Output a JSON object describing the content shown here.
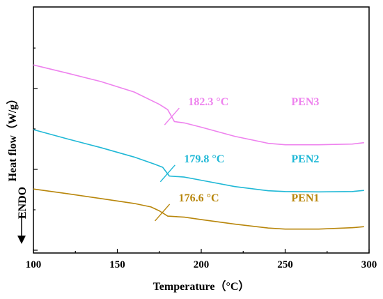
{
  "chart_data": {
    "type": "line",
    "title": "",
    "xlabel": "Temperature（°C）",
    "ylabel": "Heat flow（W/g）",
    "endo_label": "ENDO",
    "xlim": [
      100,
      300
    ],
    "x_ticks": [
      100,
      150,
      200,
      250,
      300
    ],
    "y_ticks_shown": false,
    "grid": false,
    "legend": "none (series labelled inline)",
    "series": [
      {
        "name": "PEN3",
        "color": "#ee82ee",
        "glass_transition_label": "182.3 °C",
        "glass_transition_x": 182.3,
        "points": [
          [
            100,
            40.5
          ],
          [
            120,
            38.2
          ],
          [
            140,
            35.8
          ],
          [
            160,
            32.8
          ],
          [
            175,
            29.3
          ],
          [
            180,
            27.8
          ],
          [
            184,
            24.4
          ],
          [
            190,
            24.0
          ],
          [
            200,
            22.8
          ],
          [
            220,
            20.2
          ],
          [
            240,
            18.2
          ],
          [
            250,
            17.8
          ],
          [
            270,
            17.8
          ],
          [
            290,
            18.0
          ],
          [
            297,
            18.4
          ]
        ]
      },
      {
        "name": "PEN2",
        "color": "#1fb8d6",
        "glass_transition_label": "179.8 °C",
        "glass_transition_x": 179.8,
        "points": [
          [
            100,
            22.1
          ],
          [
            120,
            19.5
          ],
          [
            140,
            17.0
          ],
          [
            160,
            14.3
          ],
          [
            172,
            12.3
          ],
          [
            177,
            11.4
          ],
          [
            181,
            8.9
          ],
          [
            190,
            8.6
          ],
          [
            200,
            7.7
          ],
          [
            220,
            5.9
          ],
          [
            240,
            4.7
          ],
          [
            250,
            4.5
          ],
          [
            270,
            4.4
          ],
          [
            290,
            4.5
          ],
          [
            297,
            4.8
          ]
        ]
      },
      {
        "name": "PEN1",
        "color": "#b8860b",
        "glass_transition_label": "176.6 °C",
        "glass_transition_x": 176.6,
        "points": [
          [
            100,
            5.2
          ],
          [
            120,
            3.9
          ],
          [
            140,
            2.5
          ],
          [
            160,
            1.1
          ],
          [
            170,
            0.1
          ],
          [
            175,
            -1.0
          ],
          [
            180,
            -2.5
          ],
          [
            190,
            -2.8
          ],
          [
            200,
            -3.5
          ],
          [
            220,
            -4.8
          ],
          [
            240,
            -5.9
          ],
          [
            250,
            -6.2
          ],
          [
            270,
            -6.2
          ],
          [
            290,
            -5.8
          ],
          [
            297,
            -5.5
          ]
        ]
      }
    ]
  }
}
